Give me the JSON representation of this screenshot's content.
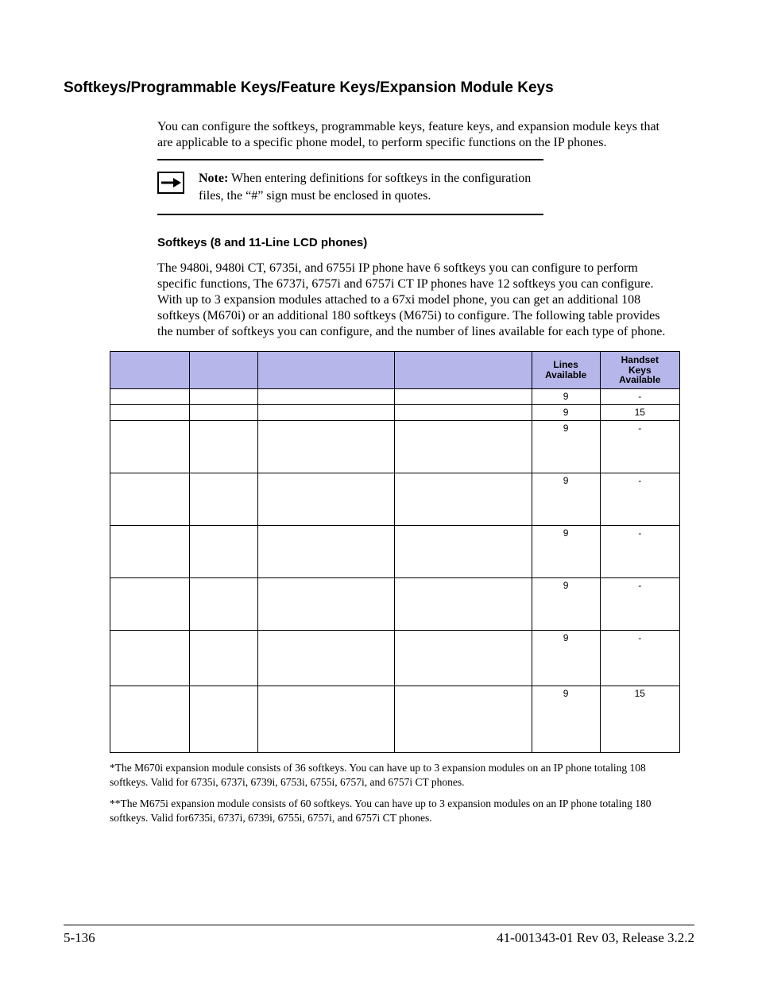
{
  "heading": "Softkeys/Programmable Keys/Feature Keys/Expansion Module Keys",
  "intro": "You can configure the softkeys, programmable keys, feature keys, and expansion module keys that are applicable to a specific phone model, to perform specific functions on the IP phones.",
  "note": {
    "label": "Note:",
    "text": " When entering definitions for softkeys in the configuration files, the “#” sign must be enclosed in quotes."
  },
  "subheading": "Softkeys (8 and 11-Line LCD phones)",
  "softkeys_para": "The 9480i, 9480i CT, 6735i, and 6755i IP phone have 6 softkeys you can configure to perform specific functions, The 6737i, 6757i and 6757i CT IP phones have 12 softkeys you can configure. With up to 3 expansion modules attached to a 67xi model phone, you can get an additional 108 softkeys (M670i) or an additional 180 softkeys (M675i) to configure. The following table provides the number of softkeys you can configure, and the number of lines available for each type of phone.",
  "table": {
    "header_bg": "#b6b6ea",
    "columns": [
      "",
      "",
      "",
      "",
      "Lines Available",
      "Handset Keys Available"
    ],
    "col_widths_pct": [
      14,
      12,
      24,
      24,
      12,
      14
    ],
    "rows": [
      {
        "h": "short",
        "cells": [
          "",
          "",
          "",
          "",
          "9",
          "-"
        ]
      },
      {
        "h": "short",
        "cells": [
          "",
          "",
          "",
          "",
          "9",
          "15"
        ]
      },
      {
        "h": "tall",
        "cells": [
          "",
          "",
          "",
          "",
          "9",
          "-"
        ]
      },
      {
        "h": "tall",
        "cells": [
          "",
          "",
          "",
          "",
          "9",
          "-"
        ]
      },
      {
        "h": "tall",
        "cells": [
          "",
          "",
          "",
          "",
          "9",
          "-"
        ]
      },
      {
        "h": "tall",
        "cells": [
          "",
          "",
          "",
          "",
          "9",
          "-"
        ]
      },
      {
        "h": "taller",
        "cells": [
          "",
          "",
          "",
          "",
          "9",
          "-"
        ]
      },
      {
        "h": "tallest",
        "cells": [
          "",
          "",
          "",
          "",
          "9",
          "15"
        ]
      }
    ]
  },
  "footnote1": "*The M670i expansion module consists of 36 softkeys. You can have up to 3 expansion modules on an IP phone totaling 108 softkeys. Valid for 6735i, 6737i, 6739i, 6753i, 6755i, 6757i, and 6757i CT phones.",
  "footnote2": "**The M675i expansion module consists of 60 softkeys. You can have up to 3 expansion modules on an IP phone totaling 180 softkeys. Valid for6735i, 6737i, 6739i, 6755i, 6757i, and 6757i CT phones.",
  "footer": {
    "left": "5-136",
    "right": "41-001343-01 Rev 03, Release 3.2.2"
  }
}
